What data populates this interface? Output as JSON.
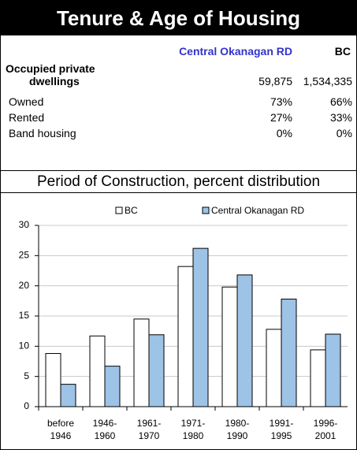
{
  "header": {
    "title": "Tenure & Age of Housing"
  },
  "table": {
    "columns": [
      "Central Okanagan RD",
      "BC"
    ],
    "rows": [
      [
        "Occupied private\ndwellings",
        "59,875",
        "1,534,335"
      ],
      [
        "Owned",
        "73%",
        "66%"
      ],
      [
        "Rented",
        "27%",
        "33%"
      ],
      [
        "Band housing",
        "0%",
        "0%"
      ]
    ]
  },
  "chart_data": {
    "type": "bar",
    "title": "Period of Construction, percent distribution",
    "categories": [
      "before\n1946",
      "1946-\n1960",
      "1961-\n1970",
      "1971-\n1980",
      "1980-\n1990",
      "1991-\n1995",
      "1996-\n2001"
    ],
    "series": [
      {
        "name": "BC",
        "color": "#ffffff",
        "values": [
          8.8,
          11.7,
          14.5,
          23.2,
          19.8,
          12.8,
          9.4
        ]
      },
      {
        "name": "Central Okanagan RD",
        "color": "#9dc3e6",
        "values": [
          3.7,
          6.7,
          11.9,
          26.2,
          21.8,
          17.8,
          12.0
        ]
      }
    ],
    "ylim": [
      0,
      30
    ],
    "yticks": [
      0,
      5,
      10,
      15,
      20,
      25,
      30
    ],
    "grid": true,
    "legend": "top"
  }
}
